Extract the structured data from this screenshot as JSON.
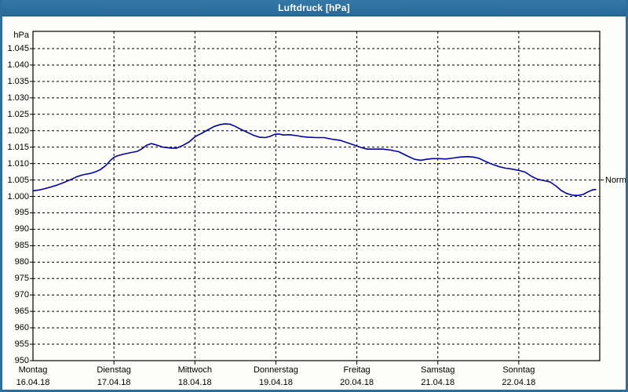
{
  "window": {
    "title": "Luftdruck [hPa]"
  },
  "colors": {
    "titlebar": "#2c6f9e",
    "frame_border": "#2c6f9e",
    "line": "#0000a0",
    "grid": "#000000",
    "title_text": "#ffffff",
    "background": "#fdfdfa"
  },
  "chart_data": {
    "type": "line",
    "title": "Luftdruck [hPa]",
    "unit_label": "hPa",
    "ylabel": "hPa",
    "xlabel": "",
    "ylim": [
      950,
      1045
    ],
    "ytick_step": 5,
    "ytick_labels": [
      "1.045",
      "1.040",
      "1.035",
      "1.030",
      "1.025",
      "1.020",
      "1.015",
      "1.010",
      "1.005",
      "1.000",
      "995",
      "990",
      "985",
      "980",
      "975",
      "970",
      "965",
      "960",
      "955",
      "950"
    ],
    "grid": "dashed",
    "x_hours_total": 168,
    "x_days": [
      {
        "day": "Montag",
        "date": "16.04.18"
      },
      {
        "day": "Dienstag",
        "date": "17.04.18"
      },
      {
        "day": "Mittwoch",
        "date": "18.04.18"
      },
      {
        "day": "Donnerstag",
        "date": "19.04.18"
      },
      {
        "day": "Freitag",
        "date": "20.04.18"
      },
      {
        "day": "Samstag",
        "date": "21.04.18"
      },
      {
        "day": "Sonntag",
        "date": "22.04.18"
      }
    ],
    "normal_marker": {
      "label": "Normal",
      "value": 1005
    },
    "series": [
      {
        "name": "Luftdruck",
        "color": "#0000a0",
        "points": [
          [
            0,
            1001.7
          ],
          [
            2.1,
            1002.0
          ],
          [
            4.4,
            1002.6
          ],
          [
            6.7,
            1003.3
          ],
          [
            9.1,
            1004.2
          ],
          [
            11.4,
            1005.2
          ],
          [
            13.0,
            1006.0
          ],
          [
            14.9,
            1006.6
          ],
          [
            17.0,
            1007.0
          ],
          [
            18.8,
            1007.6
          ],
          [
            20.0,
            1008.2
          ],
          [
            21.6,
            1009.4
          ],
          [
            23.0,
            1011.0
          ],
          [
            24.0,
            1011.9
          ],
          [
            25.1,
            1012.4
          ],
          [
            27.0,
            1012.9
          ],
          [
            29.3,
            1013.4
          ],
          [
            30.9,
            1013.7
          ],
          [
            32.3,
            1014.5
          ],
          [
            33.7,
            1015.6
          ],
          [
            35.1,
            1016.1
          ],
          [
            36.8,
            1015.6
          ],
          [
            38.6,
            1015.0
          ],
          [
            41.0,
            1014.7
          ],
          [
            42.6,
            1014.7
          ],
          [
            44.4,
            1015.5
          ],
          [
            46.3,
            1016.6
          ],
          [
            48.2,
            1018.3
          ],
          [
            50.0,
            1019.2
          ],
          [
            51.9,
            1020.3
          ],
          [
            53.7,
            1021.3
          ],
          [
            55.6,
            1021.9
          ],
          [
            57.0,
            1022.1
          ],
          [
            58.4,
            1022.0
          ],
          [
            60.0,
            1021.3
          ],
          [
            61.9,
            1020.3
          ],
          [
            63.8,
            1019.4
          ],
          [
            65.4,
            1018.6
          ],
          [
            67.2,
            1018.0
          ],
          [
            68.9,
            1017.9
          ],
          [
            70.3,
            1018.3
          ],
          [
            71.7,
            1018.9
          ],
          [
            72.8,
            1019.0
          ],
          [
            74.2,
            1018.7
          ],
          [
            75.9,
            1018.8
          ],
          [
            78.2,
            1018.5
          ],
          [
            79.8,
            1018.2
          ],
          [
            81.7,
            1018.0
          ],
          [
            84.0,
            1017.9
          ],
          [
            86.3,
            1017.9
          ],
          [
            88.7,
            1017.4
          ],
          [
            91.0,
            1017.1
          ],
          [
            93.3,
            1016.3
          ],
          [
            95.6,
            1015.5
          ],
          [
            97.5,
            1014.8
          ],
          [
            99.1,
            1014.4
          ],
          [
            101.5,
            1014.4
          ],
          [
            103.8,
            1014.4
          ],
          [
            106.1,
            1014.1
          ],
          [
            108.4,
            1013.6
          ],
          [
            110.8,
            1012.4
          ],
          [
            113.1,
            1011.3
          ],
          [
            115.0,
            1011.0
          ],
          [
            116.6,
            1011.3
          ],
          [
            118.4,
            1011.5
          ],
          [
            120.3,
            1011.5
          ],
          [
            122.4,
            1011.4
          ],
          [
            124.7,
            1011.7
          ],
          [
            126.6,
            1012.0
          ],
          [
            128.7,
            1012.1
          ],
          [
            130.5,
            1012.0
          ],
          [
            132.2,
            1011.6
          ],
          [
            134.0,
            1010.7
          ],
          [
            135.9,
            1009.9
          ],
          [
            138.0,
            1009.1
          ],
          [
            140.1,
            1008.6
          ],
          [
            142.2,
            1008.3
          ],
          [
            144.0,
            1007.9
          ],
          [
            145.9,
            1007.4
          ],
          [
            147.8,
            1006.1
          ],
          [
            149.6,
            1005.2
          ],
          [
            151.5,
            1004.8
          ],
          [
            153.3,
            1004.4
          ],
          [
            155.0,
            1003.2
          ],
          [
            156.6,
            1001.8
          ],
          [
            158.2,
            1000.9
          ],
          [
            159.9,
            1000.4
          ],
          [
            161.5,
            1000.3
          ],
          [
            163.1,
            1000.6
          ],
          [
            164.5,
            1001.4
          ],
          [
            165.9,
            1002.0
          ],
          [
            166.8,
            1002.1
          ]
        ]
      }
    ]
  }
}
